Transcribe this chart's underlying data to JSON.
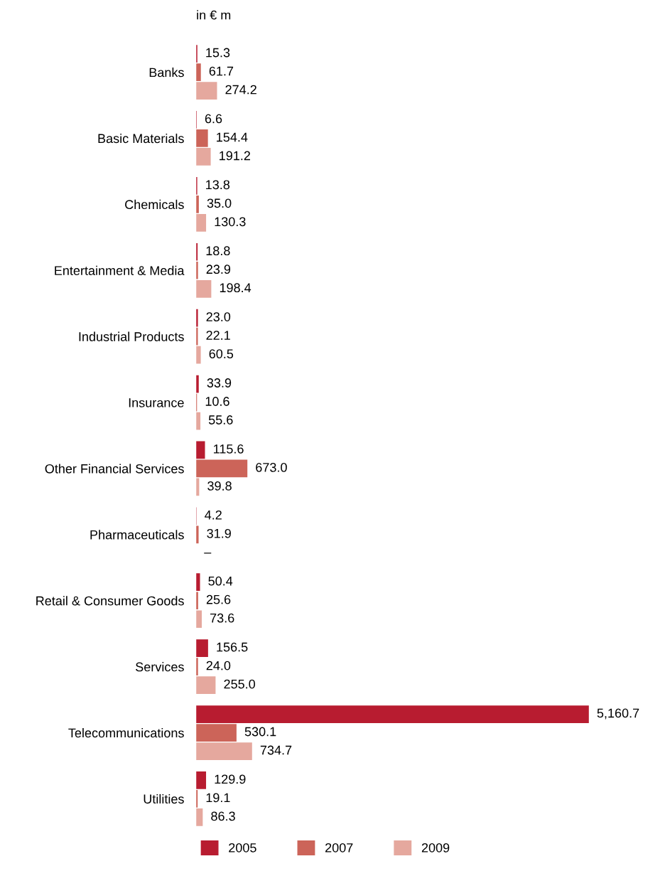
{
  "chart_data": {
    "type": "bar",
    "orientation": "horizontal",
    "title": "in € m",
    "legend": "bottom",
    "grid": false,
    "categories": [
      "Banks",
      "Basic Materials",
      "Chemicals",
      "Entertainment & Media",
      "Industrial Products",
      "Insurance",
      "Other Financial Services",
      "Pharmaceuticals",
      "Retail & Consumer Goods",
      "Services",
      "Telecommunications",
      "Utilities"
    ],
    "series": [
      {
        "name": "2005",
        "color": "#b81c30",
        "values": [
          15.3,
          6.6,
          13.8,
          18.8,
          23.0,
          33.9,
          115.6,
          4.2,
          50.4,
          156.5,
          5160.7,
          129.9
        ],
        "value_labels": [
          "15.3",
          "6.6",
          "13.8",
          "18.8",
          "23.0",
          "33.9",
          "115.6",
          "4.2",
          "50.4",
          "156.5",
          "5,160.7",
          "129.9"
        ]
      },
      {
        "name": "2007",
        "color": "#cc6459",
        "values": [
          61.7,
          154.4,
          35.0,
          23.9,
          22.1,
          10.6,
          673.0,
          31.9,
          25.6,
          24.0,
          530.1,
          19.1
        ],
        "value_labels": [
          "61.7",
          "154.4",
          "35.0",
          "23.9",
          "22.1",
          "10.6",
          "673.0",
          "31.9",
          "25.6",
          "24.0",
          "530.1",
          "19.1"
        ]
      },
      {
        "name": "2009",
        "color": "#e5a89e",
        "values": [
          274.2,
          191.2,
          130.3,
          198.4,
          60.5,
          55.6,
          39.8,
          null,
          73.6,
          255.0,
          734.7,
          86.3
        ],
        "value_labels": [
          "274.2",
          "191.2",
          "130.3",
          "198.4",
          "60.5",
          "55.6",
          "39.8",
          "–",
          "73.6",
          "255.0",
          "734.7",
          "86.3"
        ]
      }
    ]
  }
}
